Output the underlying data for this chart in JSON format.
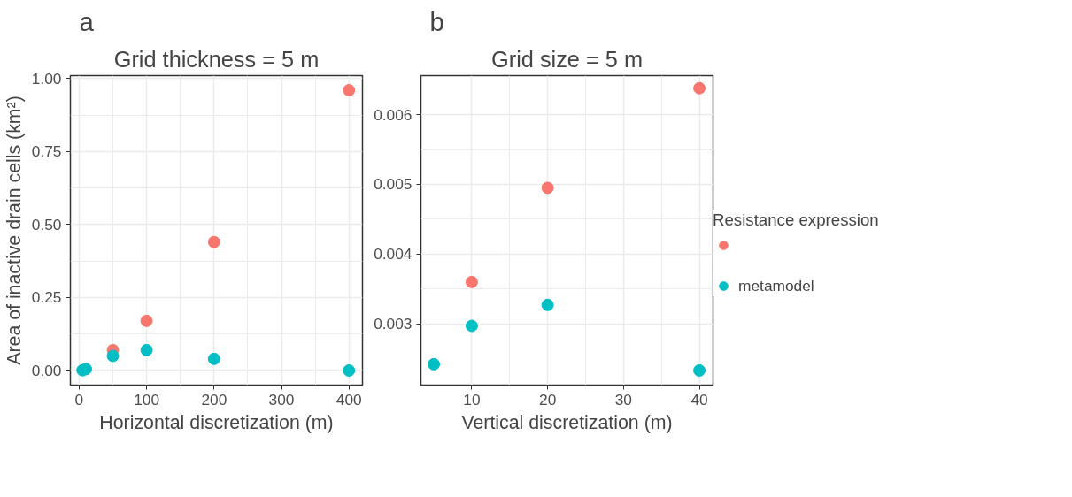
{
  "chart_data": [
    {
      "type": "scatter",
      "annotations": [
        "a"
      ],
      "title": "Grid thickness = 5 m",
      "xlabel": "Horizontal discretization (m)",
      "ylabel": "Area of inactive drain cells (km²)",
      "x": [
        5,
        10,
        50,
        100,
        200,
        400
      ],
      "series": [
        {
          "color": "#f8766d",
          "values": [
            null,
            null,
            0.07,
            0.17,
            0.44,
            0.96
          ]
        },
        {
          "color": "#00bfc4",
          "values": [
            0.001,
            0.005,
            0.05,
            0.07,
            0.04,
            0.0
          ]
        }
      ],
      "xlim": [
        -13,
        420
      ],
      "ylim": [
        -0.05,
        1.01
      ],
      "xticks": [
        0,
        100,
        200,
        300,
        400
      ],
      "yticks": [
        {
          "value": 0,
          "label": "0.00"
        },
        {
          "value": 0.25,
          "label": "0.25"
        },
        {
          "value": 0.5,
          "label": "0.50"
        },
        {
          "value": 0.75,
          "label": "0.75"
        },
        {
          "value": 1,
          "label": "1.00"
        }
      ],
      "grid": true,
      "marker": "circle"
    },
    {
      "type": "scatter",
      "annotations": [
        "b"
      ],
      "title": "Grid size = 5 m",
      "xlabel": "Vertical discretization (m)",
      "legend_title": "Resistance expression",
      "x": [
        5,
        10,
        20,
        40
      ],
      "series": [
        {
          "color": "#f8766d",
          "values": [
            null,
            0.0036,
            0.00495,
            0.00638
          ]
        },
        {
          "name": "metamodel",
          "color": "#00bfc4",
          "values": [
            0.00242,
            0.00297,
            0.00327,
            0.00233
          ]
        }
      ],
      "xlim": [
        3.3,
        41.8
      ],
      "ylim": [
        0.00212,
        0.00656
      ],
      "xticks": [
        10,
        20,
        30,
        40
      ],
      "yticks": [
        0.003,
        0.004,
        0.005,
        0.006
      ],
      "grid": true,
      "marker": "circle",
      "legend": "right"
    }
  ]
}
